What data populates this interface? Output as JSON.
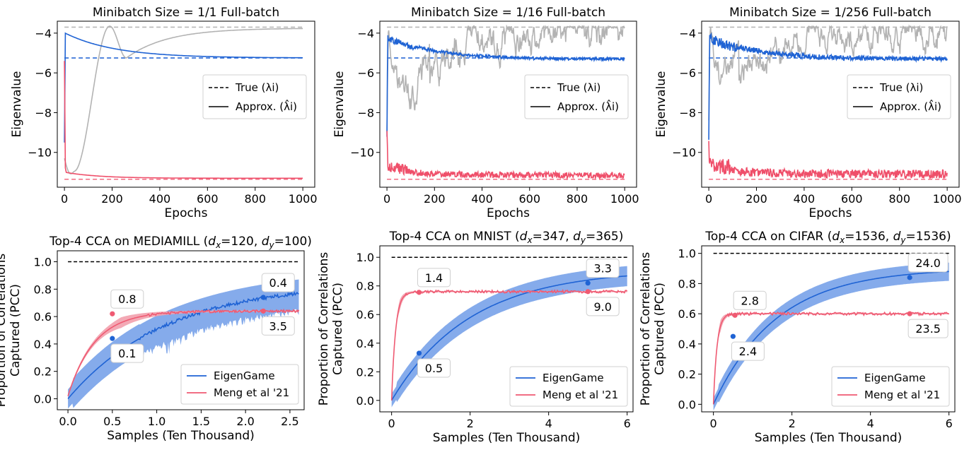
{
  "chart_data": [
    {
      "id": "p1",
      "type": "line",
      "title": "Minibatch Size = 1/1 Full-batch",
      "xlabel": "Epochs",
      "ylabel": "Eigenvalue",
      "xlim": [
        -30,
        1050
      ],
      "ylim": [
        -11.75,
        -3.4
      ],
      "xticks": [
        0,
        200,
        400,
        600,
        800,
        1000
      ],
      "xtick_labels": [
        "0",
        "200",
        "400",
        "600",
        "800",
        "1000"
      ],
      "yticks": [
        -10,
        -8,
        -6,
        -4
      ],
      "ytick_labels": [
        "−10",
        "−8",
        "−6",
        "−4"
      ],
      "true_lines": [
        {
          "name": "true-gray",
          "y": -3.7,
          "color": "#b8b8b8"
        },
        {
          "name": "true-blue",
          "y": -5.25,
          "color": "#2c6bd6"
        },
        {
          "name": "true-red",
          "y": -11.35,
          "color": "#f06b80"
        }
      ],
      "series": [
        {
          "name": "gray",
          "color": "#b3b3b3",
          "mode": "osc",
          "start": -10.3,
          "final": -3.75,
          "noise": 0
        },
        {
          "name": "blue",
          "color": "#1f63d4",
          "mode": "decay",
          "start": -9.5,
          "peak": -4.0,
          "final": -5.25,
          "noise": 0
        },
        {
          "name": "red",
          "color": "#ef4f6a",
          "mode": "red",
          "start": -5.4,
          "final": -11.3,
          "noise": 0
        }
      ],
      "legend": {
        "position": "right",
        "entries": [
          "True ($\\lambda_i$)",
          "Approx. ($\\hat{\\lambda}_i$)"
        ],
        "labels": [
          "True (λi)",
          "Approx. (λ̂i)"
        ]
      }
    },
    {
      "id": "p2",
      "type": "line",
      "title": "Minibatch Size = 1/16 Full-batch",
      "xlabel": "Epochs",
      "ylabel": "Eigenvalue",
      "xlim": [
        -30,
        1050
      ],
      "ylim": [
        -11.75,
        -3.4
      ],
      "xticks": [
        0,
        200,
        400,
        600,
        800,
        1000
      ],
      "xtick_labels": [
        "0",
        "200",
        "400",
        "600",
        "800",
        "1000"
      ],
      "yticks": [
        -10,
        -8,
        -6,
        -4
      ],
      "ytick_labels": [
        "−10",
        "−8",
        "−6",
        "−4"
      ],
      "true_lines": [
        {
          "name": "true-gray",
          "y": -3.7,
          "color": "#b8b8b8"
        },
        {
          "name": "true-blue",
          "y": -5.25,
          "color": "#2c6bd6"
        },
        {
          "name": "true-red",
          "y": -11.35,
          "color": "#f06b80"
        }
      ],
      "series": [
        {
          "name": "gray",
          "color": "#b3b3b3",
          "mode": "walk",
          "start": -9.0,
          "final": -3.8,
          "noise": 0.45
        },
        {
          "name": "blue",
          "color": "#1f63d4",
          "mode": "decay",
          "start": -9.0,
          "peak": -4.1,
          "final": -5.25,
          "noise": 0.12
        },
        {
          "name": "red",
          "color": "#ef4f6a",
          "mode": "red",
          "start": -9.3,
          "final": -11.3,
          "noise": 0.14
        }
      ],
      "legend": {
        "position": "right",
        "entries": [
          "True ($\\lambda_i$)",
          "Approx. ($\\hat{\\lambda}_i$)"
        ],
        "labels": [
          "True (λi)",
          "Approx. (λ̂i)"
        ]
      }
    },
    {
      "id": "p3",
      "type": "line",
      "title": "Minibatch Size = 1/256 Full-batch",
      "xlabel": "Epochs",
      "ylabel": "Eigenvalue",
      "xlim": [
        -30,
        1050
      ],
      "ylim": [
        -11.75,
        -3.4
      ],
      "xticks": [
        0,
        200,
        400,
        600,
        800,
        1000
      ],
      "xtick_labels": [
        "0",
        "200",
        "400",
        "600",
        "800",
        "1000"
      ],
      "yticks": [
        -10,
        -8,
        -6,
        -4
      ],
      "ytick_labels": [
        "−10",
        "−8",
        "−6",
        "−4"
      ],
      "true_lines": [
        {
          "name": "true-gray",
          "y": -3.7,
          "color": "#b8b8b8"
        },
        {
          "name": "true-blue",
          "y": -5.25,
          "color": "#2c6bd6"
        },
        {
          "name": "true-red",
          "y": -11.35,
          "color": "#f06b80"
        }
      ],
      "series": [
        {
          "name": "gray",
          "color": "#b3b3b3",
          "mode": "walk3",
          "start": -8.5,
          "final": -3.8,
          "noise": 0.4
        },
        {
          "name": "blue",
          "color": "#1f63d4",
          "mode": "decay",
          "start": -9.0,
          "peak": -4.0,
          "final": -5.2,
          "noise": 0.2
        },
        {
          "name": "red",
          "color": "#ef4f6a",
          "mode": "red",
          "start": -10.0,
          "final": -11.3,
          "noise": 0.2
        }
      ],
      "legend": {
        "position": "right",
        "entries": [
          "True ($\\lambda_i$)",
          "Approx. ($\\hat{\\lambda}_i$)"
        ],
        "labels": [
          "True (λi)",
          "Approx. (λ̂i)"
        ]
      }
    },
    {
      "id": "p4",
      "type": "line",
      "title": "Top-4 CCA on MEDIAMILL (dx=120, dy=100)",
      "title_parts": {
        "prefix": "Top-4 CCA on MEDIAMILL (",
        "dx": "120",
        "dy": "100"
      },
      "xlabel": "Samples (Ten Thousand)",
      "ylabel": [
        "Proportion of Correlations",
        "Captured (PCC)"
      ],
      "xlim": [
        -0.12,
        2.66
      ],
      "ylim": [
        -0.08,
        1.08
      ],
      "xticks": [
        0.0,
        0.5,
        1.0,
        1.5,
        2.0,
        2.5
      ],
      "xtick_labels": [
        "0.0",
        "0.5",
        "1.0",
        "1.5",
        "2.0",
        "2.5"
      ],
      "yticks": [
        0.0,
        0.2,
        0.4,
        0.6,
        0.8,
        1.0
      ],
      "ytick_labels": [
        "0.0",
        "0.2",
        "0.4",
        "0.6",
        "0.8",
        "1.0"
      ],
      "xmax": 2.6,
      "reference": 1.0,
      "eigengame": {
        "name": "EigenGame",
        "color": "#1f63d4",
        "band_color": "#7ea6ea",
        "final": 0.77,
        "rate": 0.9,
        "start": 0.0,
        "band": 0.1,
        "jagged": true
      },
      "meng": {
        "name": "Meng et al '21",
        "color": "#ef5a72",
        "band_color": "#f2a0ad",
        "plateau": 0.64,
        "rise": 0.3,
        "start": 0.02
      },
      "markers": [
        {
          "series": "meng",
          "x": 0.5,
          "y": 0.62,
          "label": "0.8",
          "pos": "above"
        },
        {
          "series": "eigengame",
          "x": 0.5,
          "y": 0.44,
          "label": "0.1",
          "pos": "below"
        },
        {
          "series": "eigengame",
          "x": 2.2,
          "y": 0.74,
          "label": "0.4",
          "pos": "above"
        },
        {
          "series": "meng",
          "x": 2.2,
          "y": 0.64,
          "label": "3.5",
          "pos": "below"
        }
      ],
      "legend": {
        "position": "lower right",
        "entries": [
          "EigenGame",
          "Meng et al '21"
        ]
      }
    },
    {
      "id": "p5",
      "type": "line",
      "title": "Top-4 CCA on MNIST (dx=347, dy=365)",
      "title_parts": {
        "prefix": "Top-4 CCA on MNIST (",
        "dx": "347",
        "dy": "365"
      },
      "xlabel": "Samples (Ten Thousand)",
      "ylabel": [
        "Proportion of Correlations",
        "Captured (PCC)"
      ],
      "xlim": [
        -0.3,
        6.15
      ],
      "ylim": [
        -0.08,
        1.08
      ],
      "xticks": [
        0,
        2,
        4,
        6
      ],
      "xtick_labels": [
        "0",
        "2",
        "4",
        "6"
      ],
      "yticks": [
        0.0,
        0.2,
        0.4,
        0.6,
        0.8,
        1.0
      ],
      "ytick_labels": [
        "0.0",
        "0.2",
        "0.4",
        "0.6",
        "0.8",
        "1.0"
      ],
      "xmax": 6.0,
      "reference": 1.0,
      "eigengame": {
        "name": "EigenGame",
        "color": "#1f63d4",
        "band_color": "#7ea6ea",
        "final": 0.87,
        "rate": 0.5,
        "start": 0.0,
        "band": 0.06,
        "jagged": false
      },
      "meng": {
        "name": "Meng et al '21",
        "color": "#ef5a72",
        "band_color": "#f2a0ad",
        "plateau": 0.76,
        "rise": 0.1,
        "start": 0.0
      },
      "markers": [
        {
          "series": "meng",
          "x": 0.7,
          "y": 0.755,
          "label": "1.4",
          "pos": "above"
        },
        {
          "series": "eigengame",
          "x": 0.7,
          "y": 0.33,
          "label": "0.5",
          "pos": "below"
        },
        {
          "series": "eigengame",
          "x": 5.0,
          "y": 0.82,
          "label": "3.3",
          "pos": "above"
        },
        {
          "series": "meng",
          "x": 5.0,
          "y": 0.76,
          "label": "9.0",
          "pos": "below"
        }
      ],
      "legend": {
        "position": "lower right",
        "entries": [
          "EigenGame",
          "Meng et al '21"
        ]
      }
    },
    {
      "id": "p6",
      "type": "line",
      "title": "Top-4 CCA on CIFAR (dx=1536, dy=1536)",
      "title_parts": {
        "prefix": "Top-4 CCA on CIFAR (",
        "dx": "1536",
        "dy": "1536"
      },
      "xlabel": "Samples (Ten Thousand)",
      "ylabel": [
        "Proportion of Correlations",
        "Captured (PCC)"
      ],
      "xlim": [
        -0.3,
        6.15
      ],
      "ylim": [
        -0.05,
        1.05
      ],
      "xticks": [
        0,
        2,
        4,
        6
      ],
      "xtick_labels": [
        "0",
        "2",
        "4",
        "6"
      ],
      "yticks": [
        0.0,
        0.2,
        0.4,
        0.6,
        0.8,
        1.0
      ],
      "ytick_labels": [
        "0.0",
        "0.2",
        "0.4",
        "0.6",
        "0.8",
        "1.0"
      ],
      "xmax": 6.0,
      "reference": 1.0,
      "eigengame": {
        "name": "EigenGame",
        "color": "#1f63d4",
        "band_color": "#7ea6ea",
        "final": 0.88,
        "rate": 0.62,
        "start": 0.0,
        "band": 0.05,
        "jagged": false
      },
      "meng": {
        "name": "Meng et al '21",
        "color": "#ef5a72",
        "band_color": "#f2a0ad",
        "plateau": 0.6,
        "rise": 0.09,
        "start": 0.0
      },
      "markers": [
        {
          "series": "meng",
          "x": 0.55,
          "y": 0.59,
          "label": "2.8",
          "pos": "above"
        },
        {
          "series": "eigengame",
          "x": 0.5,
          "y": 0.45,
          "label": "2.4",
          "pos": "below"
        },
        {
          "series": "eigengame",
          "x": 5.0,
          "y": 0.84,
          "label": "24.0",
          "pos": "above"
        },
        {
          "series": "meng",
          "x": 5.0,
          "y": 0.6,
          "label": "23.5",
          "pos": "below"
        }
      ],
      "legend": {
        "position": "lower right",
        "entries": [
          "EigenGame",
          "Meng et al '21"
        ]
      }
    }
  ]
}
